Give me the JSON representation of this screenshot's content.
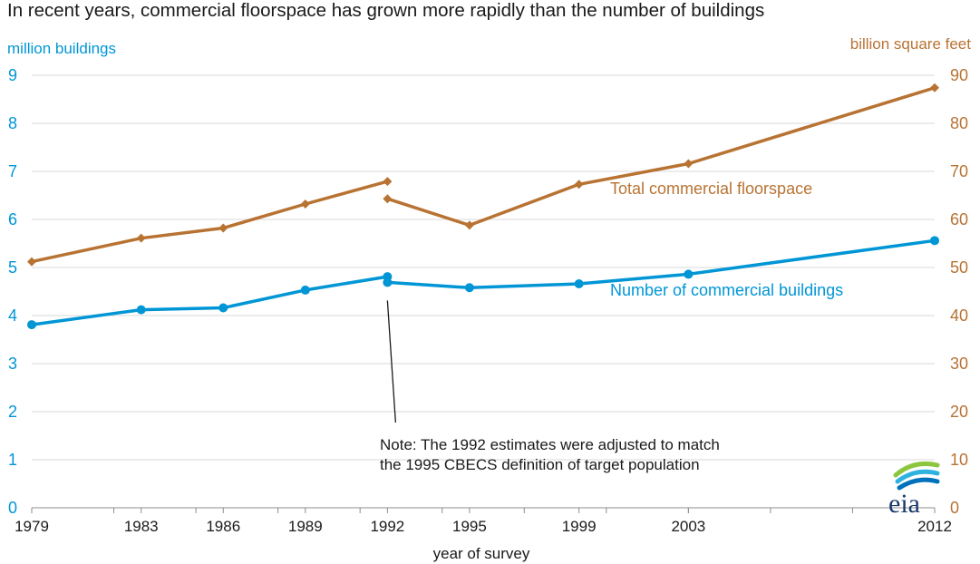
{
  "chart_data": {
    "type": "line",
    "title": "In recent years, commercial floorspace has grown more rapidly than the number of buildings",
    "xlabel": "year of survey",
    "ylabel_left": "million  buildings",
    "ylabel_right": "billion  square feet",
    "x_ticks": [
      "1979",
      "1983",
      "1986",
      "1989",
      "1992",
      "1995",
      "1999",
      "2003",
      "2012"
    ],
    "y_left_ticks": [
      "0",
      "1",
      "2",
      "3",
      "4",
      "5",
      "6",
      "7",
      "8",
      "9"
    ],
    "y_right_ticks": [
      "0",
      "10",
      "20",
      "30",
      "40",
      "50",
      "60",
      "70",
      "80",
      "90"
    ],
    "ylim_left": [
      0,
      9
    ],
    "ylim_right": [
      0,
      90
    ],
    "xlim": [
      1979,
      2012
    ],
    "grid": "horizontal",
    "series": [
      {
        "name": "Total commercial floorspace",
        "axis": "right",
        "color": "#b87333",
        "marker": "diamond",
        "segments": [
          {
            "x": [
              1979,
              1983,
              1986,
              1989,
              1992
            ],
            "y": [
              51.2,
              56.1,
              58.2,
              63.2,
              67.9
            ]
          },
          {
            "x": [
              1992,
              1995,
              1999,
              2003,
              2012
            ],
            "y": [
              64.3,
              58.8,
              67.3,
              71.6,
              87.4
            ]
          }
        ]
      },
      {
        "name": "Number of commercial buildings",
        "axis": "left",
        "color": "#0096d6",
        "marker": "circle",
        "segments": [
          {
            "x": [
              1979,
              1983,
              1986,
              1989,
              1992
            ],
            "y": [
              3.81,
              4.12,
              4.16,
              4.53,
              4.81
            ]
          },
          {
            "x": [
              1992,
              1995,
              1999,
              2003,
              2012
            ],
            "y": [
              4.69,
              4.58,
              4.66,
              4.86,
              5.56
            ]
          }
        ]
      }
    ],
    "annotation": {
      "lines": [
        "Note: The 1992 estimates were adjusted to match",
        "the 1995 CBECS definition of target population"
      ],
      "points_to": {
        "x": 1992,
        "y_left": 4.69
      }
    }
  },
  "logo": {
    "text": "eia",
    "name": "eia-logo"
  }
}
